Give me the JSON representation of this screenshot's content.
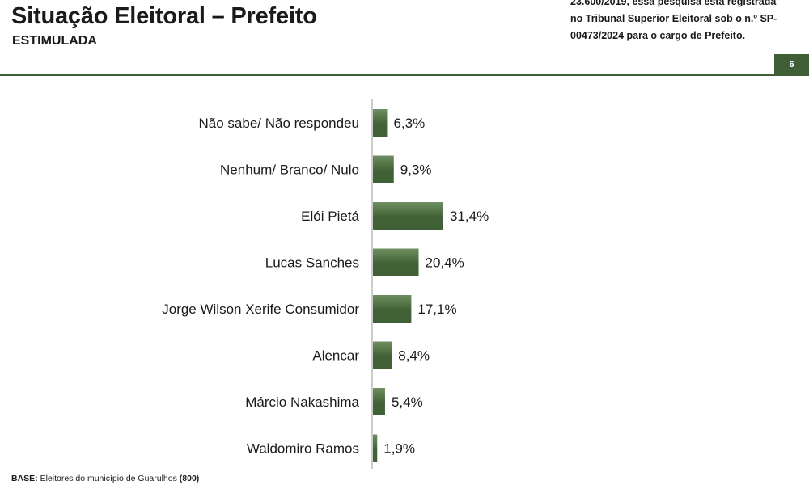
{
  "header": {
    "title": "Situação Eleitoral – Prefeito",
    "subtitle": "ESTIMULADA",
    "disclaimer_lines": [
      "23.600/2019, essa pesquisa está registrada",
      "no Tribunal Superior Eleitoral sob o n.º SP-",
      "00473/2024 para o cargo de Prefeito."
    ],
    "page_number": "6"
  },
  "colors": {
    "bar": "#3f6135",
    "bar_light": "#6f8f62",
    "accent": "#3f5e36"
  },
  "chart_data": {
    "type": "bar",
    "orientation": "horizontal",
    "categories": [
      "Não sabe/ Não respondeu",
      "Nenhum/ Branco/ Nulo",
      "Elói Pietá",
      "Lucas Sanches",
      "Jorge Wilson Xerife Consumidor",
      "Alencar",
      "Márcio Nakashima",
      "Waldomiro Ramos"
    ],
    "values": [
      6.3,
      9.3,
      31.4,
      20.4,
      17.1,
      8.4,
      5.4,
      1.9
    ],
    "value_labels": [
      "6,3%",
      "9,3%",
      "31,4%",
      "20,4%",
      "17,1%",
      "8,4%",
      "5,4%",
      "1,9%"
    ],
    "title": "",
    "xlabel": "",
    "ylabel": "",
    "grid": false,
    "legend": "none"
  },
  "footer": {
    "base_label": "BASE:",
    "base_text": "Eleitores do município de Guarulhos",
    "base_count": "(800)"
  }
}
